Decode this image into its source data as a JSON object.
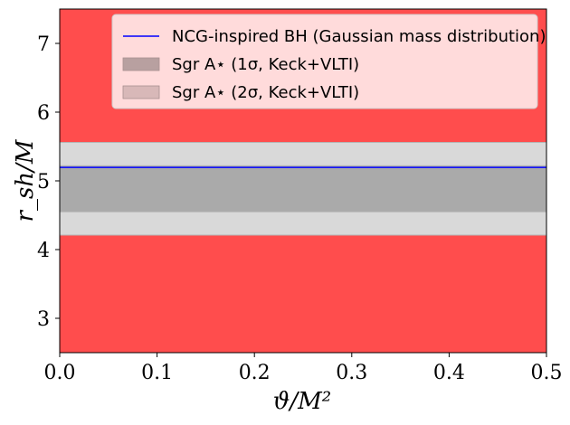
{
  "chart_data": {
    "type": "line",
    "xlabel": "ϑ/M²",
    "ylabel": "r_sh/M",
    "xlim": [
      0.0,
      0.5
    ],
    "ylim": [
      2.5,
      7.5
    ],
    "xticks": [
      0.0,
      0.1,
      0.2,
      0.3,
      0.4,
      0.5
    ],
    "xtick_labels": [
      "0.0",
      "0.1",
      "0.2",
      "0.3",
      "0.4",
      "0.5"
    ],
    "yticks": [
      3,
      4,
      5,
      6,
      7
    ],
    "ytick_labels": [
      "3",
      "4",
      "5",
      "6",
      "7"
    ],
    "grid": false,
    "legend_position": "top-right",
    "background_color": "#ff4d4d",
    "series": [
      {
        "name": "NCG-inspired BH (Gaussian mass distribution)",
        "color": "#0000ff",
        "x": [
          0.0,
          0.1,
          0.2,
          0.3,
          0.4,
          0.5
        ],
        "y": [
          5.196,
          5.196,
          5.196,
          5.196,
          5.196,
          5.196
        ]
      }
    ],
    "bands": [
      {
        "name": "Sgr A⋆ (2σ, Keck+VLTI)",
        "color": "#d9d9d9",
        "legend_color": "#d8b8b8",
        "y_range": [
          4.21,
          5.56
        ]
      },
      {
        "name": "Sgr A⋆ (1σ, Keck+VLTI)",
        "color": "#aaaaaa",
        "legend_color": "#b8a0a0",
        "y_range": [
          4.55,
          5.22
        ]
      }
    ]
  }
}
